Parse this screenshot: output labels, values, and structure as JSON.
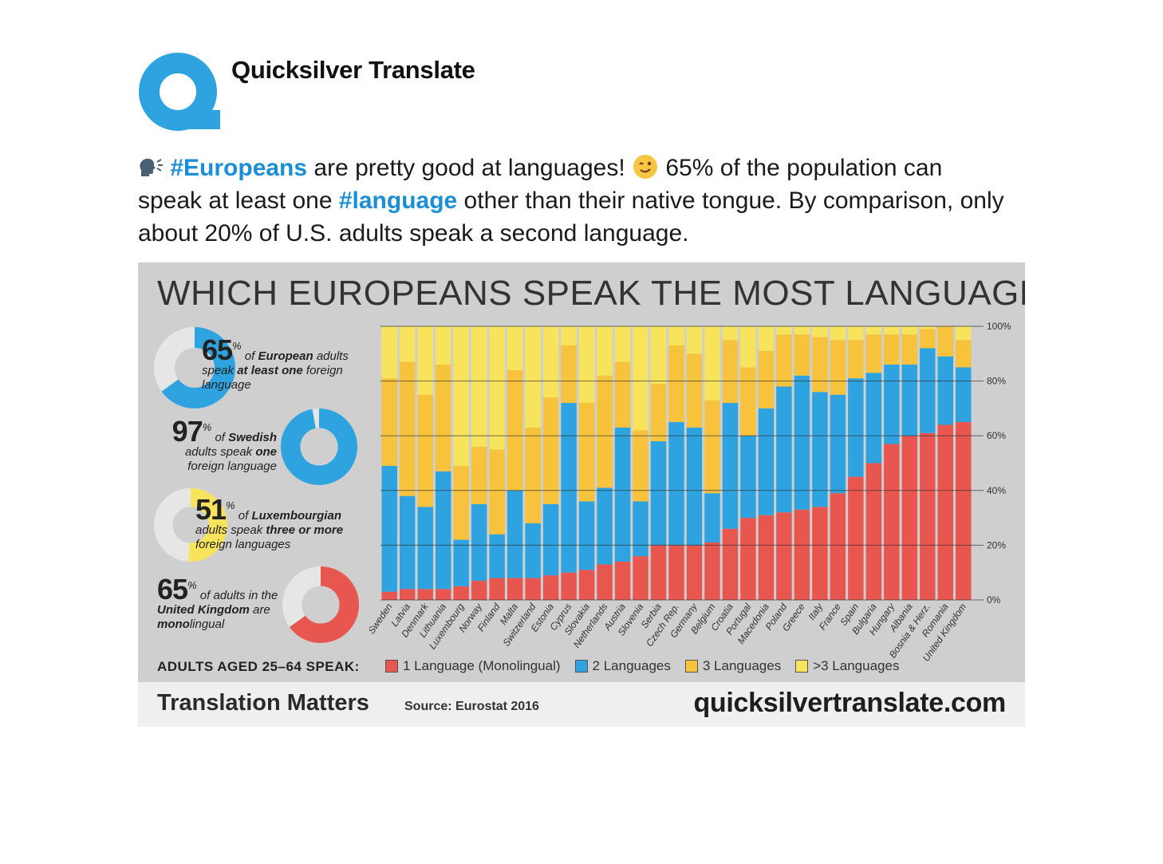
{
  "account": {
    "name": "Quicksilver Translate"
  },
  "tweet": {
    "hashtag1": "#Europeans",
    "text1": " are pretty good at languages! ",
    "text2": " 65% of the population can speak at least one ",
    "hashtag2": "#language",
    "text3": " other than their native tongue. By comparison, only about 20% of U.S. adults speak a second language."
  },
  "infographic": {
    "title": "WHICH EUROPEANS SPEAK THE MOST LANGUAGES?",
    "stats": [
      {
        "number": "65",
        "unit": "%",
        "pre": " of ",
        "bold1": "European",
        "mid": " adults speak ",
        "bold2": "at least one",
        "post": " foreign language",
        "fraction": 0.65,
        "color": "#2ea3e0"
      },
      {
        "number": "97",
        "unit": "%",
        "pre": " of ",
        "bold1": "Swedish",
        "mid": " adults speak ",
        "bold2": "one",
        "post": " foreign language",
        "fraction": 0.97,
        "color": "#2ea3e0"
      },
      {
        "number": "51",
        "unit": "%",
        "pre": " of ",
        "bold1": "Luxembourgian",
        "mid": " adults speak ",
        "bold2": "three or more",
        "post": " foreign languages",
        "fraction": 0.51,
        "color": "#f7e45c"
      },
      {
        "number": "65",
        "unit": "%",
        "pre": " of adults in the ",
        "bold1": "United Kingdom",
        "mid": " are ",
        "bold2": "mono",
        "post": "lingual",
        "fraction": 0.65,
        "color": "#e85650"
      }
    ],
    "legend_label": "ADULTS AGED 25–64 SPEAK:",
    "footer_left": "Translation Matters",
    "footer_source": "Source: Eurostat 2016",
    "footer_url": "quicksilvertranslate.com"
  },
  "chart_data": {
    "type": "bar",
    "stacked": true,
    "categories": [
      "Sweden",
      "Latvia",
      "Denmark",
      "Lithuania",
      "Luxembourg",
      "Norway",
      "Finland",
      "Malta",
      "Switzerland",
      "Estonia",
      "Cyprus",
      "Slovakia",
      "Netherlands",
      "Austria",
      "Slovenia",
      "Serbia",
      "Czech Rep.",
      "Germany",
      "Belgium",
      "Croatia",
      "Portugal",
      "Macedonia",
      "Poland",
      "Greece",
      "Italy",
      "France",
      "Spain",
      "Bulgaria",
      "Hungary",
      "Albania",
      "Bosnia & Herz.",
      "Romania",
      "United Kingdom"
    ],
    "series": [
      {
        "name": "1 Language (Monolingual)",
        "color": "#e85650",
        "values": [
          3,
          4,
          4,
          4,
          5,
          7,
          8,
          8,
          8,
          9,
          10,
          11,
          13,
          14,
          16,
          20,
          20,
          20,
          21,
          26,
          30,
          31,
          32,
          33,
          34,
          39,
          45,
          50,
          57,
          60,
          61,
          64,
          65
        ]
      },
      {
        "name": "2 Languages",
        "color": "#2ea3e0",
        "values": [
          46,
          34,
          30,
          43,
          17,
          28,
          16,
          32,
          20,
          26,
          62,
          25,
          28,
          49,
          20,
          38,
          45,
          43,
          18,
          46,
          30,
          39,
          46,
          49,
          42,
          36,
          36,
          33,
          29,
          26,
          31,
          25,
          20
        ]
      },
      {
        "name": "3 Languages",
        "color": "#f8c33c",
        "values": [
          32,
          49,
          41,
          39,
          27,
          21,
          31,
          44,
          35,
          39,
          21,
          36,
          41,
          24,
          26,
          21,
          28,
          27,
          34,
          23,
          25,
          21,
          19,
          15,
          20,
          20,
          14,
          14,
          11,
          11,
          7,
          11,
          10
        ]
      },
      {
        "name": ">3 Languages",
        "color": "#f7e45c",
        "values": [
          19,
          13,
          25,
          14,
          51,
          44,
          45,
          16,
          37,
          26,
          7,
          28,
          18,
          13,
          38,
          21,
          7,
          10,
          27,
          5,
          15,
          9,
          3,
          3,
          4,
          5,
          5,
          3,
          3,
          3,
          1,
          0,
          5
        ]
      }
    ],
    "ylim": [
      0,
      100
    ],
    "yticks": [
      "0%",
      "20%",
      "40%",
      "60%",
      "80%",
      "100%"
    ],
    "grid": true,
    "legend_position": "bottom"
  }
}
